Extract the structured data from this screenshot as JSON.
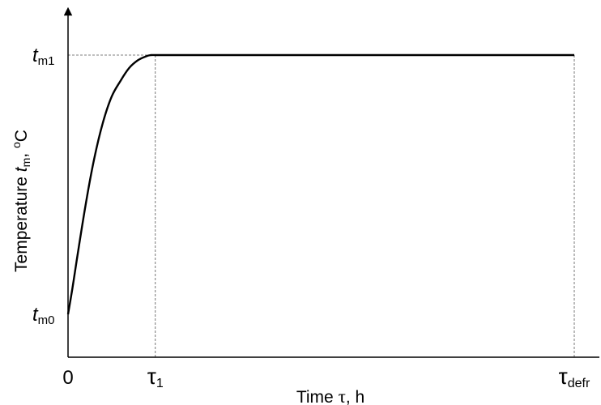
{
  "chart_data": {
    "type": "line",
    "title": "",
    "xlabel": {
      "prefix": "Time ",
      "symbol": "τ",
      "suffix": ", h"
    },
    "ylabel": {
      "prefix": "Temperature ",
      "symbol": "t",
      "subscript": "m",
      "suffix": ", ",
      "degree": "o",
      "unit": "C"
    },
    "x_ticks": [
      {
        "id": "origin",
        "label": "0",
        "subscript": "",
        "value": 0
      },
      {
        "id": "tau1",
        "label": "τ",
        "subscript": "1",
        "value": 1
      },
      {
        "id": "taudefr",
        "label": "τ",
        "subscript": "defr",
        "value": 5.8
      }
    ],
    "y_ticks": [
      {
        "id": "tm0",
        "label": "t",
        "subscript": "m0",
        "value": 0
      },
      {
        "id": "tm1",
        "label": "t",
        "subscript": "m1",
        "value": 1
      }
    ],
    "xlim": [
      0,
      6.1
    ],
    "ylim": [
      -0.16,
      1.16
    ],
    "grid": false,
    "reference_lines": [
      "tm1",
      "tau1",
      "taudefr"
    ],
    "series": [
      {
        "x": [
          0,
          0.05,
          0.1,
          0.2,
          0.3,
          0.4,
          0.5,
          0.6,
          0.7,
          0.8,
          0.9,
          0.95,
          1.0,
          1.05,
          1.1,
          1.5,
          2.0,
          3.0,
          4.0,
          5.0,
          5.8
        ],
        "y": [
          0,
          0.1,
          0.21,
          0.42,
          0.6,
          0.74,
          0.84,
          0.9,
          0.95,
          0.98,
          0.996,
          1.0,
          1.0,
          1.0,
          1.0,
          1.0,
          1.0,
          1.0,
          1.0,
          1.0,
          1.0
        ]
      }
    ],
    "colors": {
      "curve": "#000000",
      "axis": "#000000",
      "reference": "#555555"
    }
  }
}
